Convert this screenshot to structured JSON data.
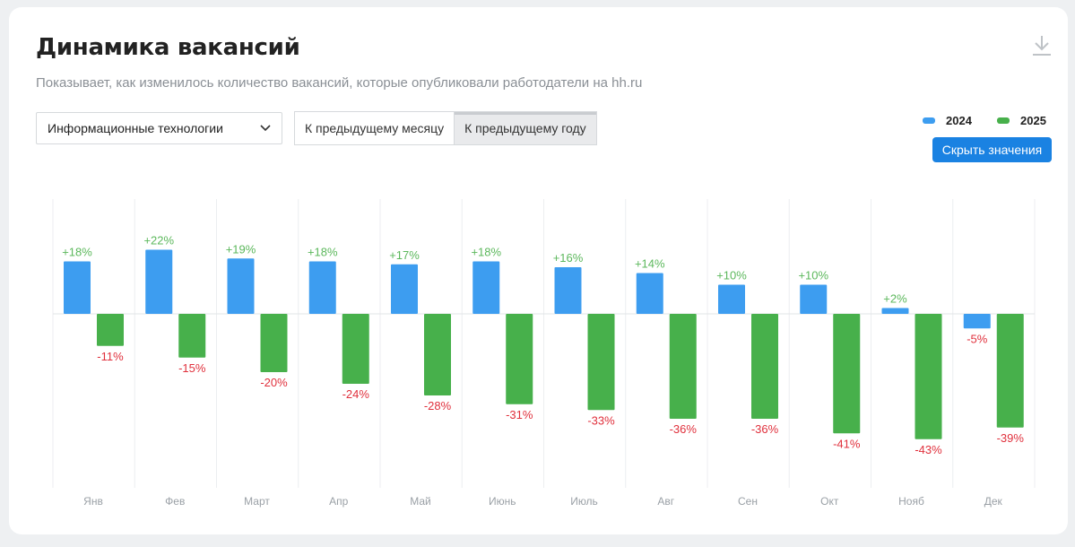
{
  "header": {
    "title": "Динамика вакансий",
    "subtitle": "Показывает, как изменилось количество вакансий, которые опубликовали работодатели на hh.ru"
  },
  "filters": {
    "industry": "Информационные технологии",
    "compare_tabs": [
      {
        "label": "К предыдущему месяцу",
        "active": false
      },
      {
        "label": "К предыдущему году",
        "active": true
      }
    ]
  },
  "legend": {
    "items": [
      {
        "label": "2024",
        "color": "#3d9df0"
      },
      {
        "label": "2025",
        "color": "#47b04b"
      }
    ]
  },
  "actions": {
    "hide_values_label": "Скрыть значения",
    "download_icon": "download-icon"
  },
  "colors": {
    "series_2024": "#3d9df0",
    "series_2025": "#47b04b",
    "positive_label": "#5cb85c",
    "negative_label": "#e0303c",
    "accent": "#1a82e2"
  },
  "chart_data": {
    "type": "bar",
    "title": "Динамика вакансий",
    "xlabel": "",
    "ylabel": "",
    "ylim": [
      -45,
      25
    ],
    "value_suffix": "%",
    "categories": [
      "Янв",
      "Фев",
      "Март",
      "Апр",
      "Май",
      "Июнь",
      "Июль",
      "Авг",
      "Сен",
      "Окт",
      "Нояб",
      "Дек"
    ],
    "series": [
      {
        "name": "2024",
        "values": [
          18,
          22,
          19,
          18,
          17,
          18,
          16,
          14,
          10,
          10,
          2,
          -5
        ]
      },
      {
        "name": "2025",
        "values": [
          -11,
          -15,
          -20,
          -24,
          -28,
          -31,
          -33,
          -36,
          -36,
          -41,
          -43,
          -39
        ]
      }
    ],
    "legend": "top-right",
    "data_labels": true
  }
}
